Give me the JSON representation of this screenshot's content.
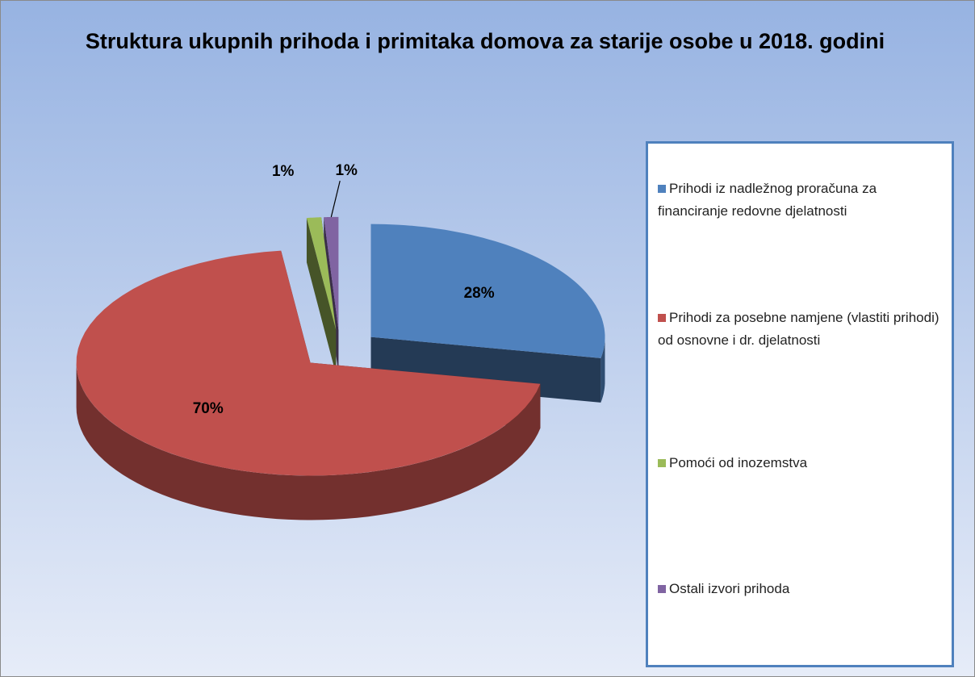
{
  "chart_data": {
    "type": "pie3d",
    "title": "Struktura ukupnih prihoda i primitaka domova za starije osobe u 2018. godini",
    "categories": [
      "Prihodi iz nadležnog proračuna za financiranje redovne djelatnosti",
      "Prihodi za posebne namjene (vlastiti prihodi) od osnovne i dr. djelatnosti",
      "Pomoći od inozemstva",
      "Ostali izvori prihoda"
    ],
    "values": [
      28,
      70,
      1,
      1
    ],
    "value_labels": [
      "28%",
      "70%",
      "1%",
      "1%"
    ],
    "colors": [
      "#4f81bd",
      "#c0504d",
      "#9bbb59",
      "#8064a2"
    ],
    "legend": "right"
  }
}
